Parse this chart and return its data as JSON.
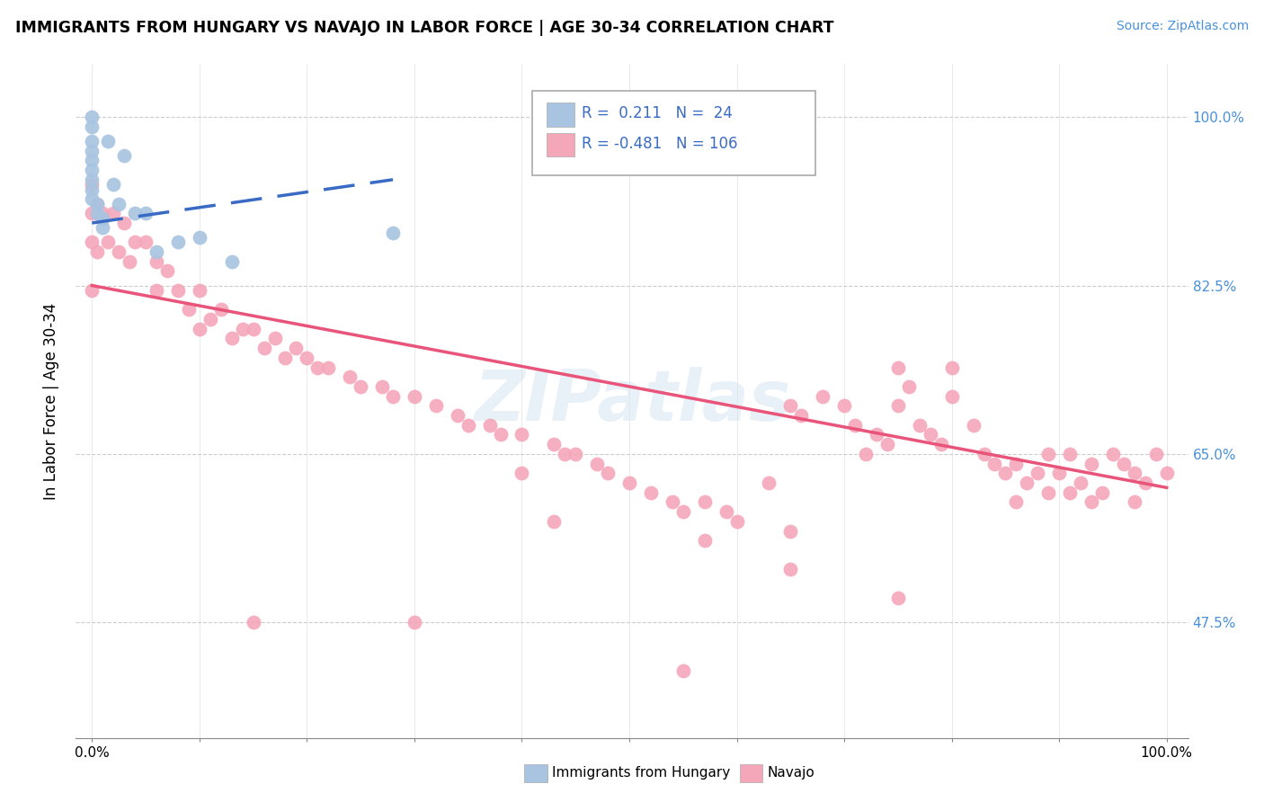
{
  "title": "IMMIGRANTS FROM HUNGARY VS NAVAJO IN LABOR FORCE | AGE 30-34 CORRELATION CHART",
  "source": "Source: ZipAtlas.com",
  "ylabel": "In Labor Force | Age 30-34",
  "xlim": [
    -0.015,
    1.02
  ],
  "ylim": [
    0.355,
    1.055
  ],
  "ytick_values": [
    0.475,
    0.65,
    0.825,
    1.0
  ],
  "ytick_labels": [
    "47.5%",
    "65.0%",
    "82.5%",
    "100.0%"
  ],
  "xtick_values": [
    0.0,
    0.1,
    0.2,
    0.3,
    0.4,
    0.5,
    0.6,
    0.7,
    0.8,
    0.9,
    1.0
  ],
  "xtick_edge_labels": [
    "0.0%",
    "100.0%"
  ],
  "legend_r_blue": " 0.211",
  "legend_n_blue": " 24",
  "legend_r_pink": "-0.481",
  "legend_n_pink": "106",
  "blue_color": "#a8c4e0",
  "pink_color": "#f4a7b9",
  "trendline_blue_color": "#3a6bc4",
  "trendline_pink_color": "#e8547a",
  "watermark": "ZIPatlas",
  "blue_x": [
    0.0,
    0.0,
    0.0,
    0.0,
    0.0,
    0.0,
    0.0,
    0.0,
    0.0,
    0.005,
    0.005,
    0.01,
    0.01,
    0.015,
    0.02,
    0.025,
    0.03,
    0.04,
    0.05,
    0.06,
    0.08,
    0.1,
    0.13,
    0.28
  ],
  "blue_y": [
    1.0,
    0.99,
    0.975,
    0.965,
    0.955,
    0.945,
    0.935,
    0.925,
    0.915,
    0.91,
    0.9,
    0.895,
    0.885,
    0.975,
    0.93,
    0.91,
    0.96,
    0.9,
    0.9,
    0.86,
    0.87,
    0.875,
    0.85,
    0.88
  ],
  "pink_x": [
    0.0,
    0.0,
    0.0,
    0.0,
    0.005,
    0.005,
    0.01,
    0.015,
    0.02,
    0.025,
    0.03,
    0.035,
    0.04,
    0.05,
    0.06,
    0.06,
    0.07,
    0.08,
    0.09,
    0.1,
    0.1,
    0.11,
    0.12,
    0.13,
    0.14,
    0.15,
    0.16,
    0.17,
    0.18,
    0.19,
    0.2,
    0.21,
    0.22,
    0.24,
    0.25,
    0.27,
    0.28,
    0.3,
    0.32,
    0.34,
    0.35,
    0.37,
    0.38,
    0.4,
    0.4,
    0.43,
    0.44,
    0.45,
    0.47,
    0.48,
    0.5,
    0.52,
    0.54,
    0.55,
    0.57,
    0.57,
    0.59,
    0.6,
    0.63,
    0.65,
    0.65,
    0.66,
    0.68,
    0.7,
    0.71,
    0.72,
    0.73,
    0.74,
    0.75,
    0.75,
    0.76,
    0.77,
    0.78,
    0.79,
    0.8,
    0.8,
    0.82,
    0.83,
    0.84,
    0.85,
    0.86,
    0.86,
    0.87,
    0.88,
    0.89,
    0.89,
    0.9,
    0.91,
    0.91,
    0.92,
    0.93,
    0.93,
    0.94,
    0.95,
    0.96,
    0.97,
    0.97,
    0.98,
    0.99,
    1.0,
    0.15,
    0.3,
    0.43,
    0.55,
    0.65,
    0.75
  ],
  "pink_y": [
    0.93,
    0.9,
    0.87,
    0.82,
    0.91,
    0.86,
    0.9,
    0.87,
    0.9,
    0.86,
    0.89,
    0.85,
    0.87,
    0.87,
    0.85,
    0.82,
    0.84,
    0.82,
    0.8,
    0.82,
    0.78,
    0.79,
    0.8,
    0.77,
    0.78,
    0.78,
    0.76,
    0.77,
    0.75,
    0.76,
    0.75,
    0.74,
    0.74,
    0.73,
    0.72,
    0.72,
    0.71,
    0.71,
    0.7,
    0.69,
    0.68,
    0.68,
    0.67,
    0.67,
    0.63,
    0.66,
    0.65,
    0.65,
    0.64,
    0.63,
    0.62,
    0.61,
    0.6,
    0.59,
    0.6,
    0.56,
    0.59,
    0.58,
    0.62,
    0.57,
    0.7,
    0.69,
    0.71,
    0.7,
    0.68,
    0.65,
    0.67,
    0.66,
    0.74,
    0.7,
    0.72,
    0.68,
    0.67,
    0.66,
    0.74,
    0.71,
    0.68,
    0.65,
    0.64,
    0.63,
    0.64,
    0.6,
    0.62,
    0.63,
    0.65,
    0.61,
    0.63,
    0.65,
    0.61,
    0.62,
    0.64,
    0.6,
    0.61,
    0.65,
    0.64,
    0.63,
    0.6,
    0.62,
    0.65,
    0.63,
    0.475,
    0.475,
    0.58,
    0.425,
    0.53,
    0.5
  ],
  "pink_trendline_x": [
    0.0,
    1.0
  ],
  "pink_trendline_y": [
    0.825,
    0.615
  ],
  "blue_trendline_x": [
    0.0,
    0.28
  ],
  "blue_trendline_y": [
    0.89,
    0.935
  ]
}
